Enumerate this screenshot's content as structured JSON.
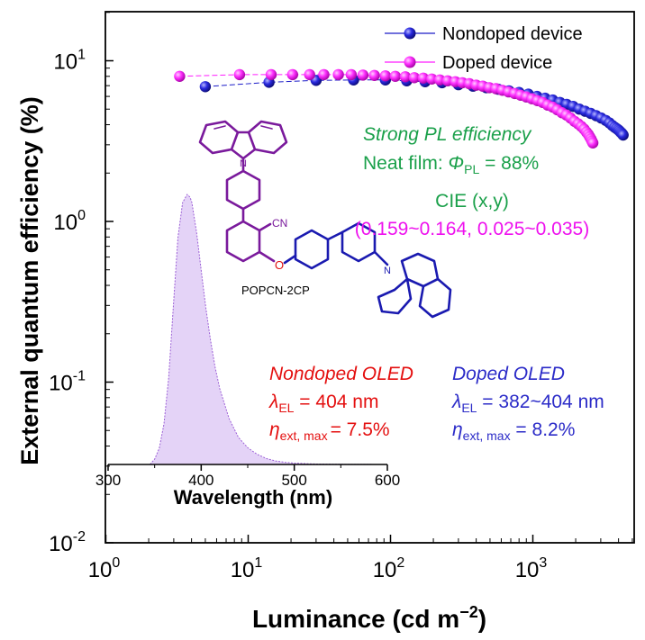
{
  "chart_data": [
    {
      "type": "scatter",
      "x_scale": "log",
      "y_scale": "log",
      "xlabel": "Luminance (cd m",
      "xlabel_sup": "−2",
      "xlabel_tail": ")",
      "ylabel": "External quantum efficiency (%)",
      "xlim": [
        1,
        5500
      ],
      "ylim": [
        0.01,
        20
      ],
      "x_ticks": [
        {
          "value": 1,
          "base": "10",
          "exp": "0"
        },
        {
          "value": 10,
          "base": "10",
          "exp": "1"
        },
        {
          "value": 100,
          "base": "10",
          "exp": "2"
        },
        {
          "value": 1000,
          "base": "10",
          "exp": "3"
        }
      ],
      "y_ticks": [
        {
          "value": 0.01,
          "base": "10",
          "exp": "-2"
        },
        {
          "value": 0.1,
          "base": "10",
          "exp": "-1"
        },
        {
          "value": 1,
          "base": "10",
          "exp": "0"
        },
        {
          "value": 10,
          "base": "10",
          "exp": "1"
        }
      ],
      "legend_position": "top-right",
      "series": [
        {
          "name": "Nondoped device",
          "color": "#1c1cc8",
          "x": [
            5,
            14,
            30,
            55,
            92,
            130,
            175,
            230,
            300,
            380,
            470,
            570,
            680,
            800,
            930,
            1070,
            1220,
            1380,
            1550,
            1730,
            1920,
            2120,
            2330,
            2550,
            2780,
            3020,
            3250,
            3450,
            3620,
            3760,
            3880,
            3980,
            4060,
            4130,
            4200,
            4260,
            4310
          ],
          "y": [
            6.9,
            7.35,
            7.55,
            7.6,
            7.6,
            7.5,
            7.4,
            7.3,
            7.1,
            6.95,
            6.8,
            6.65,
            6.5,
            6.35,
            6.2,
            6.0,
            5.85,
            5.7,
            5.5,
            5.35,
            5.2,
            5.0,
            4.85,
            4.7,
            4.55,
            4.4,
            4.25,
            4.1,
            3.95,
            3.85,
            3.78,
            3.72,
            3.66,
            3.6,
            3.55,
            3.5,
            3.45
          ]
        },
        {
          "name": "Doped device",
          "color": "#ff1cff",
          "x": [
            3.3,
            8.7,
            14.5,
            20.5,
            27,
            34,
            43,
            53,
            64,
            77,
            92,
            108,
            127,
            147,
            170,
            195,
            222,
            252,
            285,
            320,
            358,
            400,
            445,
            495,
            550,
            610,
            675,
            745,
            820,
            900,
            985,
            1075,
            1170,
            1270,
            1375,
            1485,
            1600,
            1720,
            1840,
            1960,
            2080,
            2190,
            2290,
            2380,
            2450,
            2510,
            2560,
            2600,
            2640
          ],
          "y": [
            8.0,
            8.2,
            8.2,
            8.2,
            8.2,
            8.2,
            8.2,
            8.2,
            8.15,
            8.1,
            8.05,
            8.0,
            7.95,
            7.85,
            7.8,
            7.7,
            7.6,
            7.5,
            7.4,
            7.3,
            7.2,
            7.05,
            6.95,
            6.8,
            6.7,
            6.55,
            6.4,
            6.25,
            6.1,
            5.95,
            5.8,
            5.65,
            5.5,
            5.3,
            5.15,
            4.95,
            4.75,
            4.6,
            4.4,
            4.2,
            4.05,
            3.9,
            3.75,
            3.6,
            3.48,
            3.36,
            3.26,
            3.16,
            3.08
          ]
        }
      ]
    },
    {
      "type": "area",
      "role": "inset",
      "xlabel": "Wavelength (nm)",
      "xlim": [
        300,
        600
      ],
      "x_ticks": [
        {
          "value": 300,
          "label": "300"
        },
        {
          "value": 400,
          "label": "400"
        },
        {
          "value": 500,
          "label": "500"
        },
        {
          "value": 600,
          "label": "600"
        }
      ],
      "fill_color": "#e4d3f7",
      "line_color": "#9b5fd6",
      "x": [
        345,
        350,
        355,
        360,
        365,
        370,
        375,
        380,
        385,
        388,
        390,
        395,
        400,
        405,
        410,
        415,
        420,
        430,
        440,
        450,
        460,
        470,
        480,
        490,
        500,
        520,
        540,
        560,
        580,
        590
      ],
      "y": [
        0.0,
        0.02,
        0.06,
        0.15,
        0.32,
        0.58,
        0.84,
        0.97,
        1.0,
        0.99,
        0.97,
        0.86,
        0.72,
        0.58,
        0.46,
        0.36,
        0.28,
        0.17,
        0.1,
        0.062,
        0.038,
        0.022,
        0.013,
        0.008,
        0.005,
        0.002,
        0.001,
        0.0005,
        0.0002,
        0.0
      ]
    }
  ],
  "annotations": {
    "strong_pl_title": "Strong PL efficiency",
    "neat_film_prefix": "Neat film: ",
    "neat_film_symbol": "Φ",
    "neat_film_sub": "PL",
    "neat_film_value": " = 88%",
    "cie_title": "CIE (x,y)",
    "cie_values": "(0.159~0.164, 0.025~0.035)",
    "nondoped_oled_title": "Nondoped OLED",
    "nondoped_lambda_symbol": "λ",
    "nondoped_lambda_sub": "EL",
    "nondoped_lambda_value": " = 404 nm",
    "nondoped_eta_symbol": "η",
    "nondoped_eta_sub": "ext, max",
    "nondoped_eta_value": "= 7.5%",
    "doped_oled_title": "Doped OLED",
    "doped_lambda_symbol": "λ",
    "doped_lambda_sub": "EL",
    "doped_lambda_value": " = 382~404 nm",
    "doped_eta_symbol": "η",
    "doped_eta_sub": "ext, max",
    "doped_eta_value": " = 8.2%"
  },
  "molecule": {
    "name": "POPCN-2CP",
    "cn_label": "CN",
    "o_label": "O",
    "n_label": "N",
    "colors": {
      "upper": "#7a1a9c",
      "lower": "#1a1ab0",
      "oxygen": "#e01010"
    }
  },
  "colors": {
    "green_text": "#1aa04a",
    "magenta_text": "#ee10ee",
    "red_text": "#e41010",
    "blue_text": "#2c2cc8"
  }
}
